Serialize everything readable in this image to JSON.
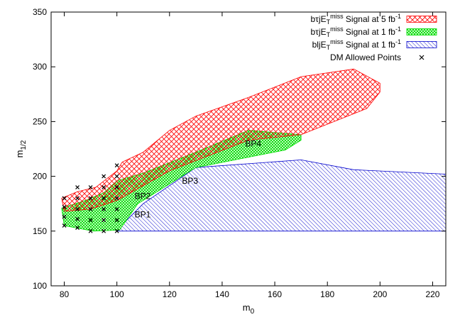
{
  "chart_data": {
    "type": "area",
    "xlabel": "m0",
    "xlabel_main": "m",
    "xlabel_sub": "0",
    "ylabel": "m1/2",
    "ylabel_main": "m",
    "ylabel_sub": "1/2",
    "xlim": [
      75,
      225
    ],
    "ylim": [
      100,
      350
    ],
    "xticks": [
      80,
      100,
      120,
      140,
      160,
      180,
      200,
      220
    ],
    "yticks": [
      100,
      150,
      200,
      250,
      300,
      350
    ],
    "grid": false,
    "legend_position": "top-right",
    "legend": [
      {
        "parts": [
          "b",
          "τ",
          "jE",
          "T",
          "miss",
          " Signal at 5 fb",
          "-1"
        ],
        "series": "red"
      },
      {
        "parts": [
          "b",
          "τ",
          "jE",
          "T",
          "miss",
          " Signal at 1 fb",
          "-1"
        ],
        "series": "green"
      },
      {
        "parts": [
          "bl",
          "",
          "jE",
          "T",
          "miss",
          " Signal at 1 fb",
          "-1"
        ],
        "series": "blue"
      },
      {
        "parts": [
          "DM Allowed Points"
        ],
        "series": "points"
      }
    ],
    "series": [
      {
        "id": "red",
        "color": "#ff0000",
        "pattern": "crosshatch",
        "polygon": [
          [
            79,
            180
          ],
          [
            85,
            186
          ],
          [
            92,
            190
          ],
          [
            100,
            205
          ],
          [
            102,
            213
          ],
          [
            110,
            222
          ],
          [
            120,
            242
          ],
          [
            130,
            255
          ],
          [
            150,
            272
          ],
          [
            170,
            291
          ],
          [
            190,
            298
          ],
          [
            200,
            285
          ],
          [
            200,
            277
          ],
          [
            195,
            262
          ],
          [
            170,
            238
          ],
          [
            150,
            233
          ],
          [
            120,
            205
          ],
          [
            100,
            178
          ],
          [
            90,
            170
          ],
          [
            80,
            168
          ]
        ]
      },
      {
        "id": "green",
        "color": "#00dd00",
        "pattern": "crosshatch",
        "polygon": [
          [
            79,
            171
          ],
          [
            88,
            178
          ],
          [
            95,
            185
          ],
          [
            100,
            196
          ],
          [
            110,
            203
          ],
          [
            130,
            222
          ],
          [
            150,
            242
          ],
          [
            170,
            238
          ],
          [
            170,
            233
          ],
          [
            164,
            224
          ],
          [
            130,
            208
          ],
          [
            108,
            175
          ],
          [
            101,
            151
          ],
          [
            91,
            150
          ],
          [
            80,
            155
          ]
        ]
      },
      {
        "id": "blue",
        "color": "#0000cc",
        "pattern": "diagonal",
        "polygon": [
          [
            100,
            150
          ],
          [
            225,
            150
          ],
          [
            225,
            202
          ],
          [
            190,
            206
          ],
          [
            170,
            215
          ],
          [
            130,
            208
          ],
          [
            110,
            175
          ],
          [
            100,
            151
          ]
        ]
      }
    ],
    "points": [
      [
        80,
        180
      ],
      [
        80,
        172
      ],
      [
        80,
        163
      ],
      [
        80,
        155
      ],
      [
        85,
        190
      ],
      [
        85,
        180
      ],
      [
        85,
        170
      ],
      [
        85,
        161
      ],
      [
        85,
        153
      ],
      [
        90,
        190
      ],
      [
        90,
        180
      ],
      [
        90,
        170
      ],
      [
        90,
        160
      ],
      [
        90,
        150
      ],
      [
        95,
        200
      ],
      [
        95,
        190
      ],
      [
        95,
        180
      ],
      [
        95,
        170
      ],
      [
        95,
        160
      ],
      [
        95,
        150
      ],
      [
        100,
        210
      ],
      [
        100,
        200
      ],
      [
        100,
        190
      ],
      [
        100,
        180
      ],
      [
        100,
        170
      ],
      [
        100,
        160
      ],
      [
        100,
        150
      ]
    ],
    "benchmarks": [
      {
        "label": "BP1",
        "x": 109,
        "y": 165
      },
      {
        "label": "BP2",
        "x": 109,
        "y": 182
      },
      {
        "label": "BP3",
        "x": 127,
        "y": 196
      },
      {
        "label": "BP4",
        "x": 151,
        "y": 230
      }
    ]
  }
}
